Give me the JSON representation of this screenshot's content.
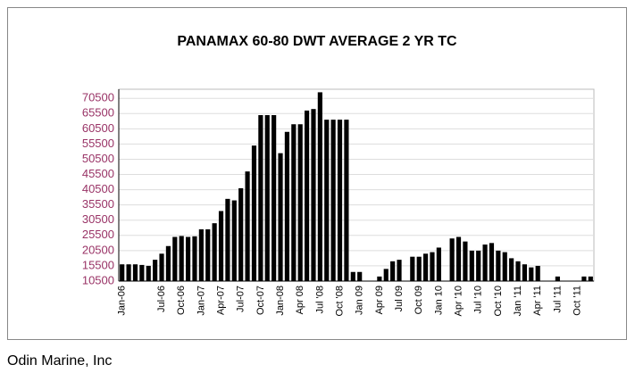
{
  "chart_data": {
    "type": "bar",
    "title": "PANAMAX 60-80 DWT AVERAGE 2 YR TC",
    "categories": [
      "Jan-06",
      null,
      null,
      null,
      null,
      null,
      "Jul-06",
      null,
      null,
      "Oct-06",
      null,
      null,
      "Jan-07",
      null,
      null,
      "Apr-07",
      null,
      null,
      "Jul-07",
      null,
      null,
      "Oct-07",
      null,
      null,
      "Jan-08",
      null,
      null,
      "Apr 08",
      null,
      null,
      "Jul '08",
      null,
      null,
      "Oct '08",
      null,
      null,
      "Jan 09",
      null,
      null,
      "Apr 09",
      null,
      null,
      "Jul 09",
      null,
      null,
      "Oct 09",
      null,
      null,
      "Jan 10",
      null,
      null,
      "Apr '10",
      null,
      null,
      "Jul '10",
      null,
      null,
      "Oct '10",
      null,
      null,
      "Jan '11",
      null,
      null,
      "Apr '11",
      null,
      null,
      "Jul '11",
      null,
      null,
      "Oct '11",
      null,
      null
    ],
    "values": [
      16000,
      16000,
      16000,
      15800,
      15500,
      17500,
      19500,
      22000,
      25000,
      25300,
      25000,
      25200,
      27500,
      27500,
      29500,
      33500,
      37500,
      37000,
      41000,
      46500,
      55000,
      65000,
      65000,
      65000,
      52500,
      59500,
      62000,
      62000,
      66500,
      67000,
      72500,
      63500,
      63500,
      63500,
      63500,
      13500,
      13500,
      null,
      null,
      12000,
      14500,
      17000,
      17500,
      null,
      18500,
      18500,
      19500,
      20000,
      21500,
      null,
      24500,
      25000,
      23500,
      20500,
      20500,
      22500,
      23000,
      20500,
      20000,
      18000,
      17000,
      16000,
      15000,
      15500,
      null,
      null,
      12000,
      null,
      null,
      null,
      12000,
      12000
    ],
    "color": "#000000",
    "ylim": [
      10500,
      73500
    ],
    "yticks": [
      10500,
      15500,
      20500,
      25500,
      30500,
      35500,
      40500,
      45500,
      50500,
      55500,
      60500,
      65500,
      70500
    ],
    "grid": true,
    "footer": "Odin Marine, Inc"
  }
}
